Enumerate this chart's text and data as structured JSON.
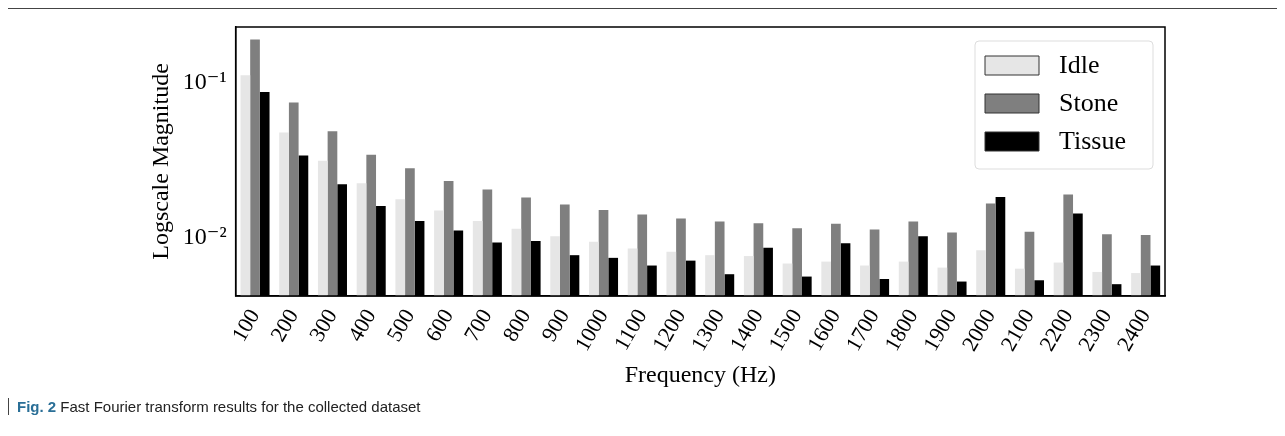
{
  "chart_data": {
    "type": "bar",
    "xlabel": "Frequency (Hz)",
    "ylabel": "Logscale Magnitude",
    "log": true,
    "legend": "top right",
    "grid": false,
    "categories": [
      "100",
      "200",
      "300",
      "400",
      "500",
      "600",
      "700",
      "800",
      "900",
      "1000",
      "1100",
      "1200",
      "1300",
      "1400",
      "1500",
      "1600",
      "1700",
      "1800",
      "1900",
      "2000",
      "2100",
      "2200",
      "2300",
      "2400"
    ],
    "series": [
      {
        "name": "Idle",
        "color": "#e6e6e6",
        "values": [
          0.112,
          0.0478,
          0.0314,
          0.0225,
          0.0177,
          0.015,
          0.0128,
          0.0114,
          0.0102,
          0.0094,
          0.0085,
          0.0081,
          0.0077,
          0.0076,
          0.0068,
          0.007,
          0.0066,
          0.007,
          0.0064,
          0.0083,
          0.0063,
          0.0069,
          0.006,
          0.0059
        ]
      },
      {
        "name": "Stone",
        "color": "#7f7f7f",
        "values": [
          0.191,
          0.0747,
          0.0488,
          0.0343,
          0.0281,
          0.0232,
          0.0205,
          0.0182,
          0.0164,
          0.0151,
          0.0141,
          0.0133,
          0.0127,
          0.0124,
          0.0115,
          0.0123,
          0.0113,
          0.0127,
          0.0108,
          0.0166,
          0.0109,
          0.019,
          0.0105,
          0.0104
        ]
      },
      {
        "name": "Tissue",
        "color": "#000000",
        "values": [
          0.0875,
          0.034,
          0.0221,
          0.016,
          0.0128,
          0.0111,
          0.0093,
          0.0095,
          0.0077,
          0.0074,
          0.0066,
          0.0071,
          0.0058,
          0.0086,
          0.0056,
          0.0092,
          0.0054,
          0.0102,
          0.0052,
          0.0183,
          0.0053,
          0.0143,
          0.005,
          0.0066
        ]
      }
    ],
    "ylim": [
      0.0042,
      0.23
    ],
    "yticks": [
      {
        "value": 0.01,
        "label": "10⁻²"
      },
      {
        "value": 0.1,
        "label": "10⁻¹"
      }
    ],
    "annotations": [
      "Fig. 2 Fast Fourier transform results for the collected dataset"
    ]
  }
}
